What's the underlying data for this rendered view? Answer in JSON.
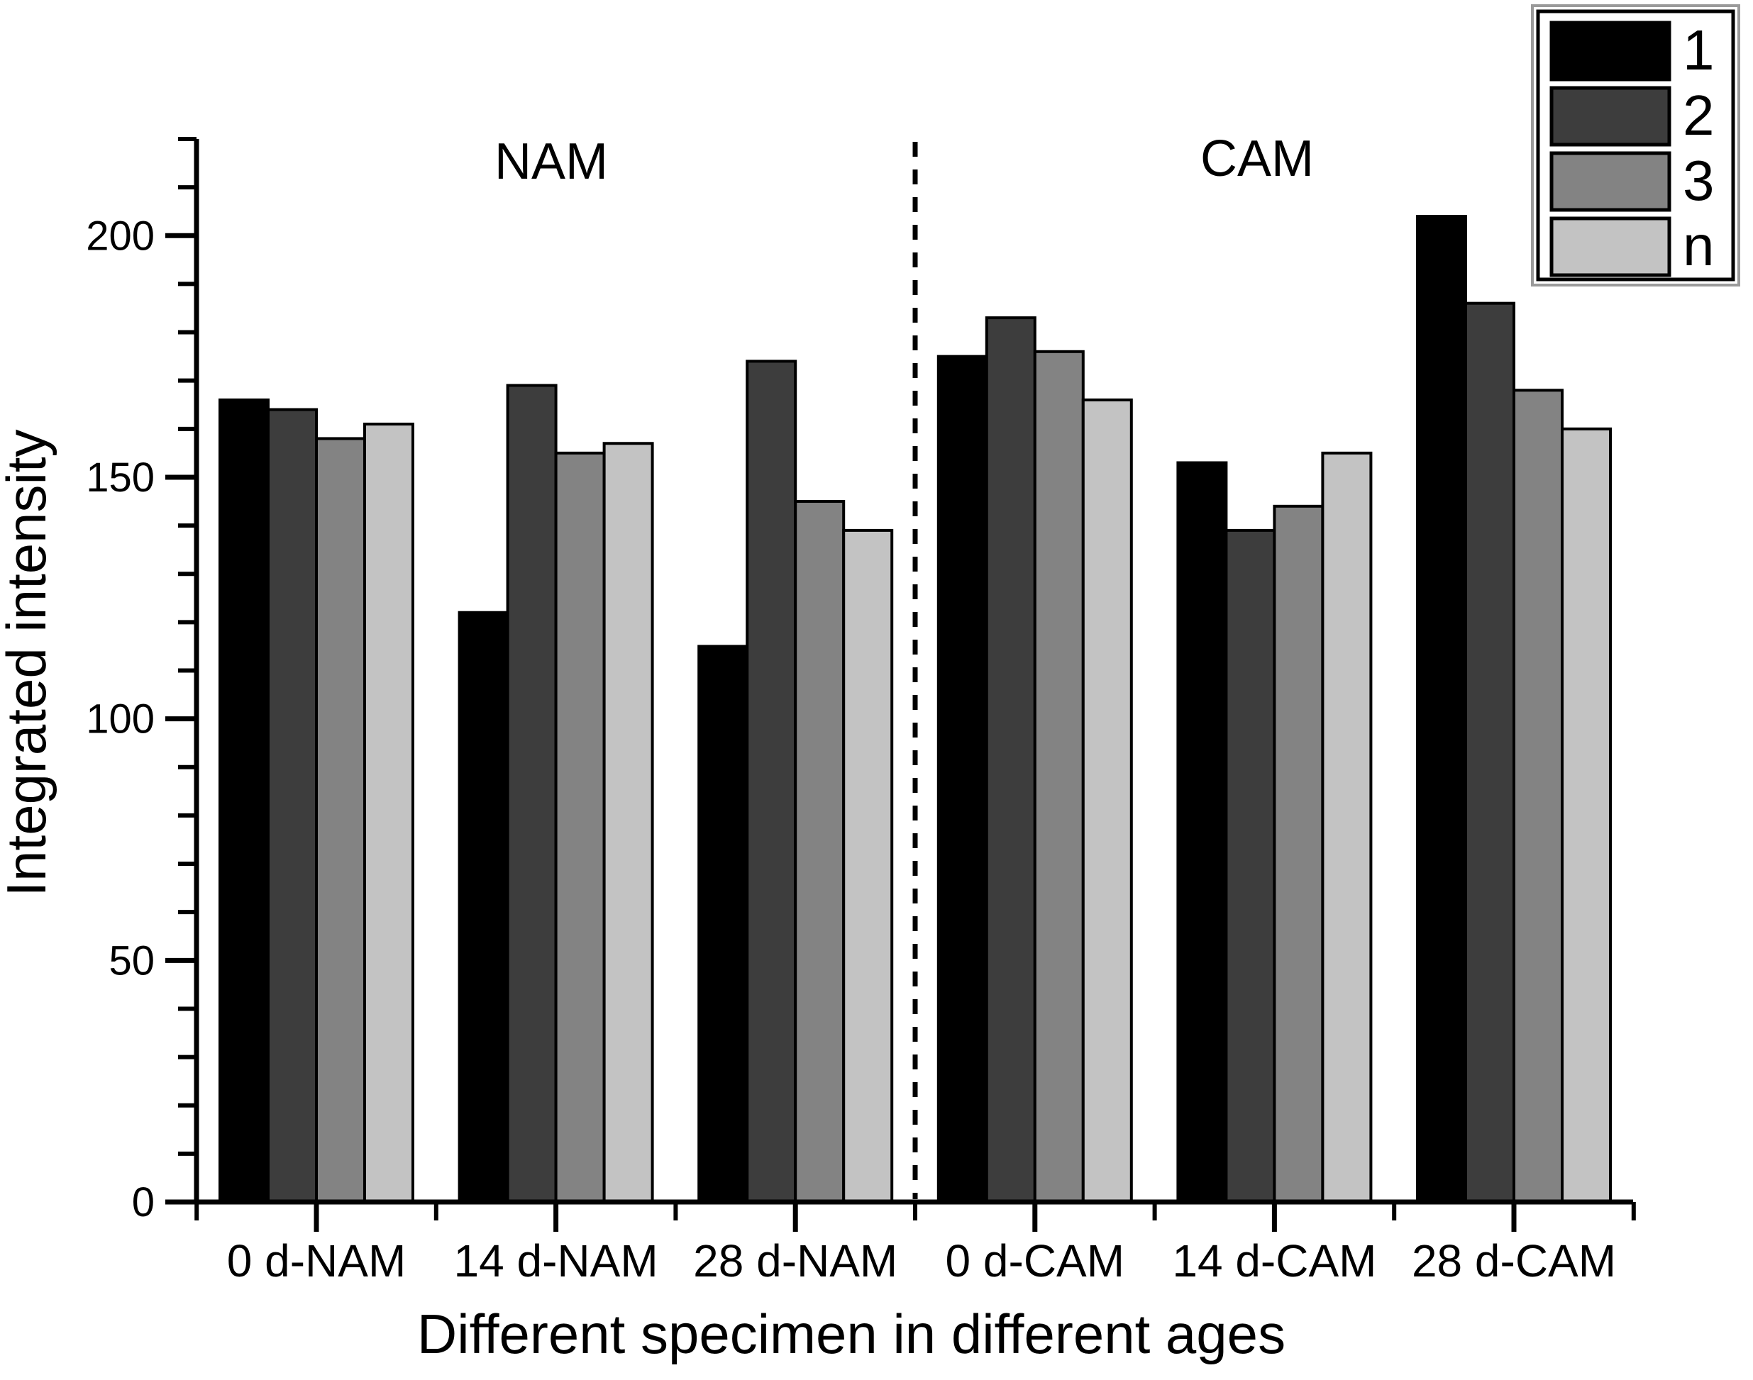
{
  "chart_data": {
    "type": "bar",
    "title": "",
    "xlabel": "Different specimen in different ages",
    "ylabel": "Integrated intensity",
    "categories": [
      "0 d-NAM",
      "14 d-NAM",
      "28 d-NAM",
      "0 d-CAM",
      "14 d-CAM",
      "28 d-CAM"
    ],
    "series": [
      {
        "name": "1",
        "color": "#000000",
        "values": [
          166,
          122,
          115,
          175,
          153,
          204
        ]
      },
      {
        "name": "2",
        "color": "#3d3d3d",
        "values": [
          164,
          169,
          174,
          183,
          139,
          186
        ]
      },
      {
        "name": "3",
        "color": "#838383",
        "values": [
          158,
          155,
          145,
          176,
          144,
          168
        ]
      },
      {
        "name": "n",
        "color": "#c3c3c3",
        "values": [
          161,
          157,
          139,
          166,
          155,
          160
        ]
      }
    ],
    "ylim": [
      0,
      220
    ],
    "yticks_major": [
      0,
      50,
      100,
      150,
      200
    ],
    "ytick_minor_step": 10,
    "legend_position": "top-right",
    "legend_entries": [
      "1",
      "2",
      "3",
      "n"
    ],
    "region_labels": [
      {
        "text": "NAM",
        "side": "left"
      },
      {
        "text": "CAM",
        "side": "right"
      }
    ],
    "divider": {
      "style": "dashed",
      "between": [
        "28 d-NAM",
        "0 d-CAM"
      ]
    },
    "grid": false,
    "bar_outline_color": "#000000",
    "background": "#ffffff"
  }
}
